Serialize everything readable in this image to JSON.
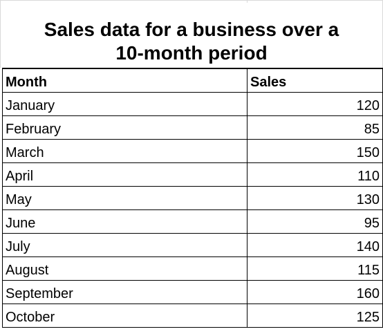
{
  "title": "Sales data for a business over a 10-month period",
  "title_line1": "Sales data for a business over a",
  "title_line2": "10-month period",
  "table": {
    "headers": [
      "Month",
      "Sales"
    ],
    "rows": [
      [
        "January",
        "120"
      ],
      [
        "February",
        "85"
      ],
      [
        "March",
        "150"
      ],
      [
        "April",
        "110"
      ],
      [
        "May",
        "130"
      ],
      [
        "June",
        "95"
      ],
      [
        "July",
        "140"
      ],
      [
        "August",
        "115"
      ],
      [
        "September",
        "160"
      ],
      [
        "October",
        "125"
      ]
    ]
  }
}
